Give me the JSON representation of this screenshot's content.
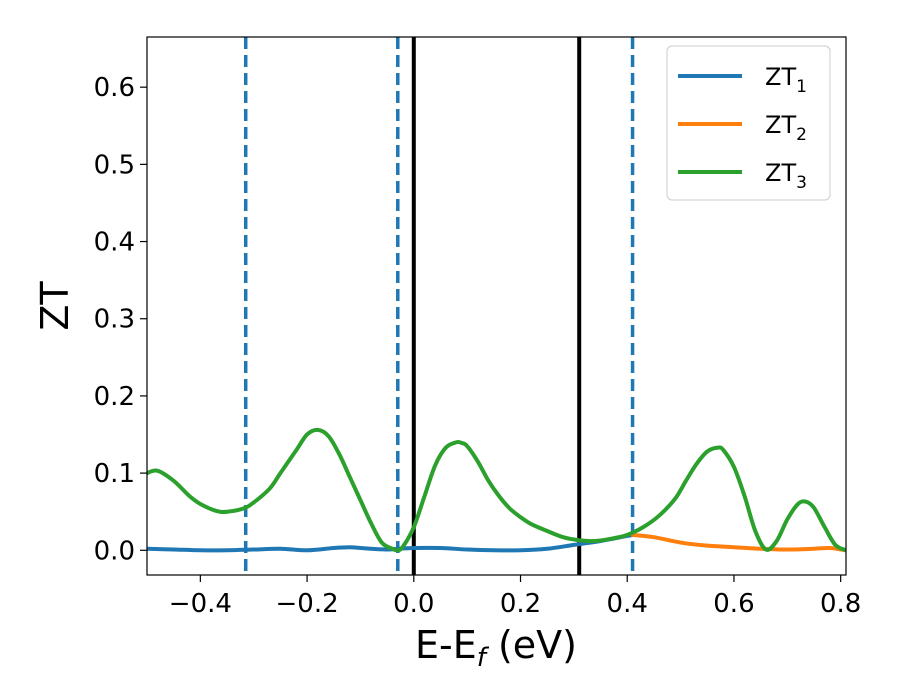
{
  "chart_data": {
    "type": "line",
    "xlabel": "E-E",
    "xlabel_sub": "f",
    "xlabel_unit": " (eV)",
    "ylabel": "ZT",
    "xlim": [
      -0.5,
      0.81
    ],
    "ylim": [
      -0.032,
      0.665
    ],
    "grid": false,
    "legend_position": "top-right",
    "x_ticks": [
      -0.4,
      -0.2,
      0.0,
      0.2,
      0.4,
      0.6,
      0.8
    ],
    "x_tick_labels": [
      "−0.4",
      "−0.2",
      "0.0",
      "0.2",
      "0.4",
      "0.6",
      "0.8"
    ],
    "y_ticks": [
      0.0,
      0.1,
      0.2,
      0.3,
      0.4,
      0.5,
      0.6
    ],
    "y_tick_labels": [
      "0.0",
      "0.1",
      "0.2",
      "0.3",
      "0.4",
      "0.5",
      "0.6"
    ],
    "vertical_lines": [
      {
        "x": -0.315,
        "style": "dashed",
        "color": "#1f77b4"
      },
      {
        "x": -0.03,
        "style": "dashed",
        "color": "#1f77b4"
      },
      {
        "x": 0.0,
        "style": "solid",
        "color": "#000000"
      },
      {
        "x": 0.31,
        "style": "solid",
        "color": "#000000"
      },
      {
        "x": 0.41,
        "style": "dashed",
        "color": "#1f77b4"
      }
    ],
    "series": [
      {
        "name": "ZT",
        "subscript": "1",
        "color": "#1f77b4",
        "x": [
          -0.5,
          -0.45,
          -0.4,
          -0.35,
          -0.3,
          -0.25,
          -0.2,
          -0.15,
          -0.12,
          -0.1,
          -0.05,
          -0.03,
          0.0,
          0.05,
          0.1,
          0.15,
          0.2,
          0.25,
          0.3,
          0.35,
          0.41
        ],
        "y": [
          0.002,
          0.001,
          0.0,
          0.0,
          0.001,
          0.002,
          0.0,
          0.003,
          0.004,
          0.003,
          0.001,
          0.002,
          0.003,
          0.003,
          0.001,
          0.0,
          0.0,
          0.002,
          0.007,
          0.012,
          0.02
        ]
      },
      {
        "name": "ZT",
        "subscript": "2",
        "color": "#ff7f0e",
        "x": [
          0.41,
          0.45,
          0.5,
          0.55,
          0.6,
          0.65,
          0.7,
          0.75,
          0.78,
          0.81
        ],
        "y": [
          0.02,
          0.017,
          0.01,
          0.006,
          0.004,
          0.002,
          0.001,
          0.002,
          0.003,
          0.0
        ]
      },
      {
        "name": "ZT",
        "subscript": "3",
        "color": "#2ca02c",
        "x": [
          -0.5,
          -0.48,
          -0.45,
          -0.42,
          -0.4,
          -0.37,
          -0.35,
          -0.32,
          -0.3,
          -0.27,
          -0.25,
          -0.22,
          -0.2,
          -0.18,
          -0.16,
          -0.14,
          -0.12,
          -0.1,
          -0.08,
          -0.06,
          -0.04,
          -0.03,
          -0.02,
          0.0,
          0.02,
          0.04,
          0.06,
          0.08,
          0.09,
          0.1,
          0.12,
          0.14,
          0.16,
          0.18,
          0.2,
          0.22,
          0.25,
          0.28,
          0.31,
          0.34,
          0.37,
          0.4,
          0.43,
          0.46,
          0.49,
          0.51,
          0.53,
          0.55,
          0.57,
          0.58,
          0.6,
          0.62,
          0.64,
          0.66,
          0.68,
          0.7,
          0.72,
          0.735,
          0.75,
          0.77,
          0.79,
          0.81
        ],
        "y": [
          0.1,
          0.103,
          0.09,
          0.07,
          0.06,
          0.051,
          0.05,
          0.054,
          0.062,
          0.08,
          0.1,
          0.13,
          0.15,
          0.156,
          0.148,
          0.125,
          0.095,
          0.065,
          0.035,
          0.01,
          0.002,
          0.0,
          0.005,
          0.03,
          0.07,
          0.11,
          0.133,
          0.14,
          0.139,
          0.135,
          0.115,
          0.09,
          0.07,
          0.054,
          0.043,
          0.034,
          0.025,
          0.017,
          0.013,
          0.012,
          0.015,
          0.02,
          0.03,
          0.045,
          0.067,
          0.09,
          0.112,
          0.128,
          0.133,
          0.13,
          0.108,
          0.07,
          0.025,
          0.001,
          0.012,
          0.04,
          0.06,
          0.063,
          0.055,
          0.03,
          0.007,
          0.0
        ]
      }
    ]
  }
}
